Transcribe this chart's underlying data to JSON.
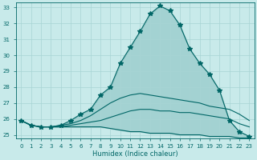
{
  "xlabel": "Humidex (Indice chaleur)",
  "xlim": [
    -0.5,
    23.5
  ],
  "ylim": [
    24.8,
    33.3
  ],
  "yticks": [
    25,
    26,
    27,
    28,
    29,
    30,
    31,
    32,
    33
  ],
  "xticks": [
    0,
    1,
    2,
    3,
    4,
    5,
    6,
    7,
    8,
    9,
    10,
    11,
    12,
    13,
    14,
    15,
    16,
    17,
    18,
    19,
    20,
    21,
    22,
    23
  ],
  "bg_color": "#c8eaea",
  "grid_color": "#a8d4d4",
  "line_color": "#006666",
  "curve_main_x": [
    0,
    1,
    2,
    3,
    4,
    5,
    6,
    7,
    8,
    9,
    10,
    11,
    12,
    13,
    14,
    15,
    16,
    17,
    18,
    19,
    20,
    21,
    22,
    23
  ],
  "curve_main_y": [
    25.9,
    25.6,
    25.5,
    25.5,
    25.6,
    25.9,
    26.3,
    26.6,
    27.5,
    28.0,
    29.5,
    30.5,
    31.5,
    32.6,
    33.1,
    32.8,
    31.9,
    30.4,
    29.5,
    28.8,
    27.8,
    25.9,
    25.2,
    24.9
  ],
  "curve_a_x": [
    0,
    1,
    2,
    3,
    4,
    5,
    6,
    7,
    8,
    9,
    10,
    11,
    12,
    13,
    14,
    15,
    16,
    17,
    18,
    19,
    20,
    21,
    22,
    23
  ],
  "curve_a_y": [
    25.9,
    25.6,
    25.5,
    25.5,
    25.6,
    25.7,
    25.9,
    26.2,
    26.6,
    27.0,
    27.3,
    27.5,
    27.6,
    27.5,
    27.4,
    27.3,
    27.2,
    27.1,
    27.0,
    26.8,
    26.7,
    26.6,
    26.3,
    25.9
  ],
  "curve_b_x": [
    0,
    1,
    2,
    3,
    4,
    5,
    6,
    7,
    8,
    9,
    10,
    11,
    12,
    13,
    14,
    15,
    16,
    17,
    18,
    19,
    20,
    21,
    22,
    23
  ],
  "curve_b_y": [
    25.9,
    25.6,
    25.5,
    25.5,
    25.5,
    25.6,
    25.7,
    25.8,
    25.9,
    26.1,
    26.3,
    26.5,
    26.6,
    26.6,
    26.5,
    26.5,
    26.4,
    26.4,
    26.3,
    26.2,
    26.1,
    26.0,
    25.7,
    25.5
  ],
  "curve_c_x": [
    0,
    1,
    2,
    3,
    4,
    5,
    6,
    7,
    8,
    9,
    10,
    11,
    12,
    13,
    14,
    15,
    16,
    17,
    18,
    19,
    20,
    21,
    22,
    23
  ],
  "curve_c_y": [
    25.9,
    25.6,
    25.5,
    25.5,
    25.5,
    25.5,
    25.5,
    25.5,
    25.5,
    25.4,
    25.3,
    25.2,
    25.2,
    25.1,
    25.1,
    25.1,
    25.0,
    25.0,
    25.0,
    24.9,
    24.9,
    24.9,
    24.8,
    24.8
  ]
}
